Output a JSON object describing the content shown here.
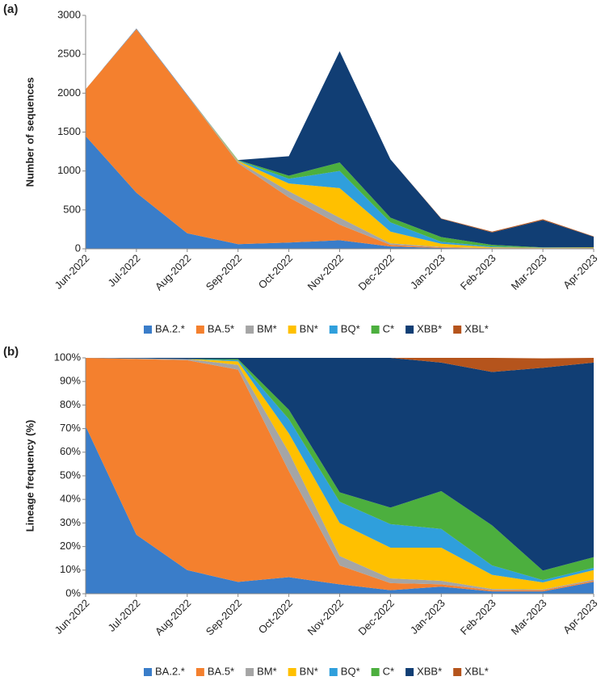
{
  "chart_data": [
    {
      "type": "area",
      "panel_label": "(a)",
      "y_label": "Number of sequences",
      "categories": [
        "Jun-2022",
        "Jul-2022",
        "Aug-2022",
        "Sep-2022",
        "Oct-2022",
        "Nov-2022",
        "Dec-2022",
        "Jan-2023",
        "Feb-2023",
        "Mar-2023",
        "Apr-2023"
      ],
      "ylim": [
        0,
        3000
      ],
      "yticks": [
        0,
        500,
        1000,
        1500,
        2000,
        2500,
        3000
      ],
      "legend": "bottom",
      "series": [
        {
          "name": "BA.2.*",
          "color": "#3a7dc9",
          "values": [
            1450,
            720,
            200,
            60,
            80,
            110,
            30,
            10,
            5,
            5,
            8
          ]
        },
        {
          "name": "BA.5*",
          "color": "#f4802e",
          "values": [
            600,
            2100,
            1770,
            1040,
            580,
            200,
            20,
            10,
            3,
            2,
            2
          ]
        },
        {
          "name": "BM*",
          "color": "#a5a5a5",
          "values": [
            0,
            5,
            5,
            20,
            80,
            90,
            20,
            5,
            2,
            1,
            1
          ]
        },
        {
          "name": "BN*",
          "color": "#ffc000",
          "values": [
            0,
            0,
            0,
            10,
            100,
            380,
            150,
            40,
            10,
            5,
            5
          ]
        },
        {
          "name": "BQ*",
          "color": "#2f9fdc",
          "values": [
            0,
            0,
            0,
            5,
            60,
            220,
            120,
            25,
            10,
            2,
            1
          ]
        },
        {
          "name": "C*",
          "color": "#4caf3e",
          "values": [
            0,
            0,
            0,
            5,
            40,
            110,
            60,
            60,
            20,
            3,
            2
          ]
        },
        {
          "name": "XBB*",
          "color": "#113e74",
          "values": [
            0,
            5,
            5,
            0,
            250,
            1430,
            750,
            235,
            160,
            350,
            135
          ]
        },
        {
          "name": "XBL*",
          "color": "#b5541c",
          "values": [
            0,
            0,
            0,
            0,
            0,
            0,
            0,
            5,
            10,
            12,
            6
          ]
        }
      ]
    },
    {
      "type": "area",
      "panel_label": "(b)",
      "y_label": "Lineage frequency (%)",
      "categories": [
        "Jun-2022",
        "Jul-2022",
        "Aug-2022",
        "Sep-2022",
        "Oct-2022",
        "Nov-2022",
        "Dec-2022",
        "Jan-2023",
        "Feb-2023",
        "Mar-2023",
        "Apr-2023"
      ],
      "ylim": [
        0,
        100
      ],
      "yticks": [
        {
          "value": 0,
          "label": "0%"
        },
        {
          "value": 10,
          "label": "10%"
        },
        {
          "value": 20,
          "label": "20%"
        },
        {
          "value": 30,
          "label": "30%"
        },
        {
          "value": 40,
          "label": "40%"
        },
        {
          "value": 50,
          "label": "50%"
        },
        {
          "value": 60,
          "label": "60%"
        },
        {
          "value": 70,
          "label": "70%"
        },
        {
          "value": 80,
          "label": "80%"
        },
        {
          "value": 90,
          "label": "90%"
        },
        {
          "value": 100,
          "label": "100%"
        }
      ],
      "legend": "bottom",
      "series": [
        {
          "name": "BA.2.*",
          "color": "#3a7dc9",
          "values": [
            71,
            25,
            10,
            5,
            7,
            4,
            1.5,
            3,
            1,
            1,
            5
          ]
        },
        {
          "name": "BA.5*",
          "color": "#f4802e",
          "values": [
            29,
            74.5,
            89,
            90,
            45,
            8,
            3,
            1,
            0.5,
            0.5,
            0.5
          ]
        },
        {
          "name": "BM*",
          "color": "#a5a5a5",
          "values": [
            0,
            0.3,
            0.5,
            2,
            8,
            4,
            2,
            1.5,
            0.5,
            0.3,
            0.5
          ]
        },
        {
          "name": "BN*",
          "color": "#ffc000",
          "values": [
            0,
            0,
            0,
            1.5,
            8,
            14,
            13,
            14,
            6,
            3,
            4
          ]
        },
        {
          "name": "BQ*",
          "color": "#2f9fdc",
          "values": [
            0,
            0,
            0,
            0.5,
            6,
            9,
            10,
            8,
            4,
            1,
            1
          ]
        },
        {
          "name": "C*",
          "color": "#4caf3e",
          "values": [
            0,
            0,
            0,
            0.5,
            4,
            4,
            7,
            16,
            17,
            4,
            4.5
          ]
        },
        {
          "name": "XBB*",
          "color": "#113e74",
          "values": [
            0,
            0.2,
            0.5,
            0.5,
            22,
            57,
            63.5,
            54.5,
            65,
            86,
            82.5
          ]
        },
        {
          "name": "XBL*",
          "color": "#b5541c",
          "values": [
            0,
            0,
            0,
            0,
            0,
            0,
            0,
            2,
            6,
            4,
            2
          ]
        }
      ]
    }
  ]
}
